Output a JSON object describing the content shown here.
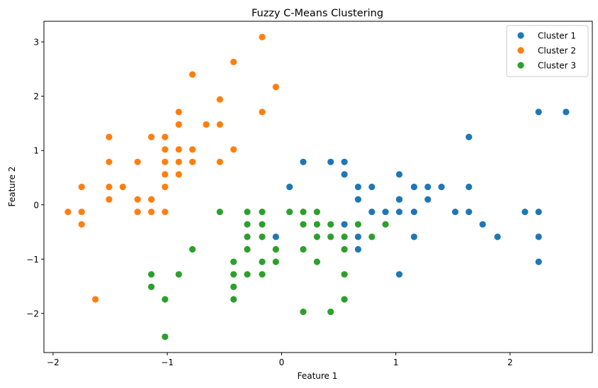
{
  "chart_data": {
    "type": "scatter",
    "title": "Fuzzy C-Means Clustering",
    "xlabel": "Feature 1",
    "ylabel": "Feature 2",
    "xlim": [
      -2.08,
      2.72
    ],
    "ylim": [
      -2.72,
      3.38
    ],
    "xticks": [
      -2,
      -1,
      0,
      1,
      2
    ],
    "xtick_labels": [
      "−2",
      "−1",
      "0",
      "1",
      "2"
    ],
    "yticks": [
      -2,
      -1,
      0,
      1,
      2,
      3
    ],
    "ytick_labels": [
      "−2",
      "−1",
      "0",
      "1",
      "2",
      "3"
    ],
    "grid": false,
    "legend_position": "top-right",
    "series": [
      {
        "name": "Cluster 1",
        "color": "#1f77b4",
        "points": [
          [
            0.07,
            0.33
          ],
          [
            0.19,
            0.79
          ],
          [
            0.43,
            0.79
          ],
          [
            0.55,
            0.79
          ],
          [
            0.55,
            0.56
          ],
          [
            0.67,
            0.33
          ],
          [
            0.67,
            0.1
          ],
          [
            0.79,
            0.33
          ],
          [
            0.79,
            -0.13
          ],
          [
            0.91,
            -0.13
          ],
          [
            1.03,
            0.56
          ],
          [
            1.03,
            0.1
          ],
          [
            1.03,
            0.1
          ],
          [
            1.03,
            -0.13
          ],
          [
            1.16,
            0.33
          ],
          [
            1.16,
            -0.13
          ],
          [
            1.28,
            0.33
          ],
          [
            1.28,
            0.1
          ],
          [
            1.4,
            0.33
          ],
          [
            1.52,
            -0.13
          ],
          [
            1.64,
            1.25
          ],
          [
            1.64,
            0.33
          ],
          [
            1.64,
            -0.13
          ],
          [
            1.76,
            -0.36
          ],
          [
            1.89,
            -0.59
          ],
          [
            2.13,
            -0.13
          ],
          [
            2.25,
            1.71
          ],
          [
            2.25,
            -0.13
          ],
          [
            2.25,
            -0.59
          ],
          [
            2.25,
            -1.05
          ],
          [
            2.49,
            1.71
          ],
          [
            -0.05,
            -0.59
          ],
          [
            0.55,
            -0.36
          ],
          [
            0.67,
            -0.59
          ],
          [
            0.67,
            -0.82
          ],
          [
            1.16,
            -0.59
          ],
          [
            1.03,
            -1.28
          ]
        ]
      },
      {
        "name": "Cluster 2",
        "color": "#ff7f0e",
        "points": [
          [
            -1.87,
            -0.13
          ],
          [
            -1.75,
            0.33
          ],
          [
            -1.75,
            -0.13
          ],
          [
            -1.75,
            -0.36
          ],
          [
            -1.63,
            -1.74
          ],
          [
            -1.51,
            1.25
          ],
          [
            -1.51,
            0.79
          ],
          [
            -1.51,
            0.33
          ],
          [
            -1.51,
            0.1
          ],
          [
            -1.39,
            0.33
          ],
          [
            -1.26,
            0.79
          ],
          [
            -1.26,
            0.1
          ],
          [
            -1.26,
            -0.13
          ],
          [
            -1.14,
            1.25
          ],
          [
            -1.14,
            0.1
          ],
          [
            -1.14,
            -0.13
          ],
          [
            -1.02,
            1.25
          ],
          [
            -1.02,
            1.02
          ],
          [
            -1.02,
            0.79
          ],
          [
            -1.02,
            0.56
          ],
          [
            -1.02,
            0.33
          ],
          [
            -1.02,
            -0.13
          ],
          [
            -0.9,
            1.71
          ],
          [
            -0.9,
            1.48
          ],
          [
            -0.9,
            1.02
          ],
          [
            -0.9,
            0.79
          ],
          [
            -0.9,
            0.56
          ],
          [
            -0.78,
            2.4
          ],
          [
            -0.78,
            1.02
          ],
          [
            -0.78,
            0.79
          ],
          [
            -0.66,
            1.48
          ],
          [
            -0.54,
            1.94
          ],
          [
            -0.54,
            1.48
          ],
          [
            -0.54,
            0.79
          ],
          [
            -0.42,
            2.63
          ],
          [
            -0.42,
            1.02
          ],
          [
            -0.17,
            3.09
          ],
          [
            -0.17,
            1.71
          ],
          [
            -0.05,
            2.17
          ]
        ]
      },
      {
        "name": "Cluster 3",
        "color": "#2ca02c",
        "points": [
          [
            -1.14,
            -1.28
          ],
          [
            -1.14,
            -1.51
          ],
          [
            -1.02,
            -1.74
          ],
          [
            -1.02,
            -2.43
          ],
          [
            -0.9,
            -1.28
          ],
          [
            -0.78,
            -0.82
          ],
          [
            -0.54,
            -0.13
          ],
          [
            -0.42,
            -1.05
          ],
          [
            -0.42,
            -1.28
          ],
          [
            -0.42,
            -1.51
          ],
          [
            -0.42,
            -1.74
          ],
          [
            -0.3,
            -0.13
          ],
          [
            -0.3,
            -0.36
          ],
          [
            -0.3,
            -0.59
          ],
          [
            -0.3,
            -0.82
          ],
          [
            -0.3,
            -1.28
          ],
          [
            -0.17,
            -0.13
          ],
          [
            -0.17,
            -0.36
          ],
          [
            -0.17,
            -0.59
          ],
          [
            -0.17,
            -1.05
          ],
          [
            -0.17,
            -1.28
          ],
          [
            -0.05,
            -0.82
          ],
          [
            -0.05,
            -1.05
          ],
          [
            0.07,
            -0.13
          ],
          [
            0.19,
            -0.13
          ],
          [
            0.19,
            -0.36
          ],
          [
            0.19,
            -0.82
          ],
          [
            0.19,
            -1.97
          ],
          [
            0.31,
            -0.13
          ],
          [
            0.31,
            -0.36
          ],
          [
            0.31,
            -0.59
          ],
          [
            0.31,
            -1.05
          ],
          [
            0.43,
            -0.36
          ],
          [
            0.43,
            -0.59
          ],
          [
            0.43,
            -1.97
          ],
          [
            0.55,
            -0.59
          ],
          [
            0.55,
            -0.82
          ],
          [
            0.55,
            -1.28
          ],
          [
            0.55,
            -1.74
          ],
          [
            0.67,
            -0.36
          ],
          [
            0.79,
            -0.59
          ],
          [
            0.91,
            -0.36
          ]
        ]
      }
    ]
  }
}
